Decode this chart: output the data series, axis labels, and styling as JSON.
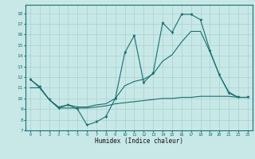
{
  "xlabel": "Humidex (Indice chaleur)",
  "bg_color": "#c8e8e8",
  "grid_color": "#a8d0d0",
  "line_color": "#1a6e6e",
  "xlim": [
    -0.5,
    23.5
  ],
  "ylim": [
    7,
    18.8
  ],
  "yticks": [
    7,
    8,
    9,
    10,
    11,
    12,
    13,
    14,
    15,
    16,
    17,
    18
  ],
  "xticks": [
    0,
    1,
    2,
    3,
    4,
    5,
    6,
    7,
    8,
    9,
    10,
    11,
    12,
    13,
    14,
    15,
    16,
    17,
    18,
    19,
    20,
    21,
    22,
    23
  ],
  "line1_x": [
    0,
    1,
    2,
    3,
    4,
    5,
    6,
    7,
    8,
    9,
    10,
    11,
    12,
    13,
    14,
    15,
    16,
    17,
    18,
    19,
    20,
    21,
    22,
    23
  ],
  "line1_y": [
    11.8,
    11.1,
    9.9,
    9.1,
    9.4,
    9.0,
    7.5,
    7.8,
    8.3,
    10.0,
    14.3,
    15.9,
    11.5,
    12.4,
    17.1,
    16.2,
    17.9,
    17.9,
    17.4,
    14.5,
    12.2,
    10.5,
    10.1,
    10.1
  ],
  "line2_x": [
    0,
    1,
    2,
    3,
    4,
    5,
    6,
    7,
    8,
    9,
    10,
    11,
    12,
    13,
    14,
    15,
    16,
    17,
    18,
    19,
    20,
    21,
    22,
    23
  ],
  "line2_y": [
    11.0,
    11.0,
    9.9,
    9.1,
    9.1,
    9.1,
    9.1,
    9.2,
    9.3,
    9.5,
    9.6,
    9.7,
    9.8,
    9.9,
    10.0,
    10.0,
    10.1,
    10.1,
    10.2,
    10.2,
    10.2,
    10.2,
    10.1,
    10.1
  ],
  "line3_x": [
    0,
    1,
    2,
    3,
    4,
    5,
    6,
    7,
    8,
    9,
    10,
    11,
    12,
    13,
    14,
    15,
    16,
    17,
    18,
    19,
    20,
    21,
    22,
    23
  ],
  "line3_y": [
    11.8,
    11.0,
    9.9,
    9.2,
    9.4,
    9.2,
    9.2,
    9.4,
    9.5,
    10.0,
    11.2,
    11.6,
    11.8,
    12.3,
    13.5,
    14.1,
    15.3,
    16.3,
    16.3,
    14.4,
    12.2,
    10.6,
    10.1,
    10.1
  ]
}
